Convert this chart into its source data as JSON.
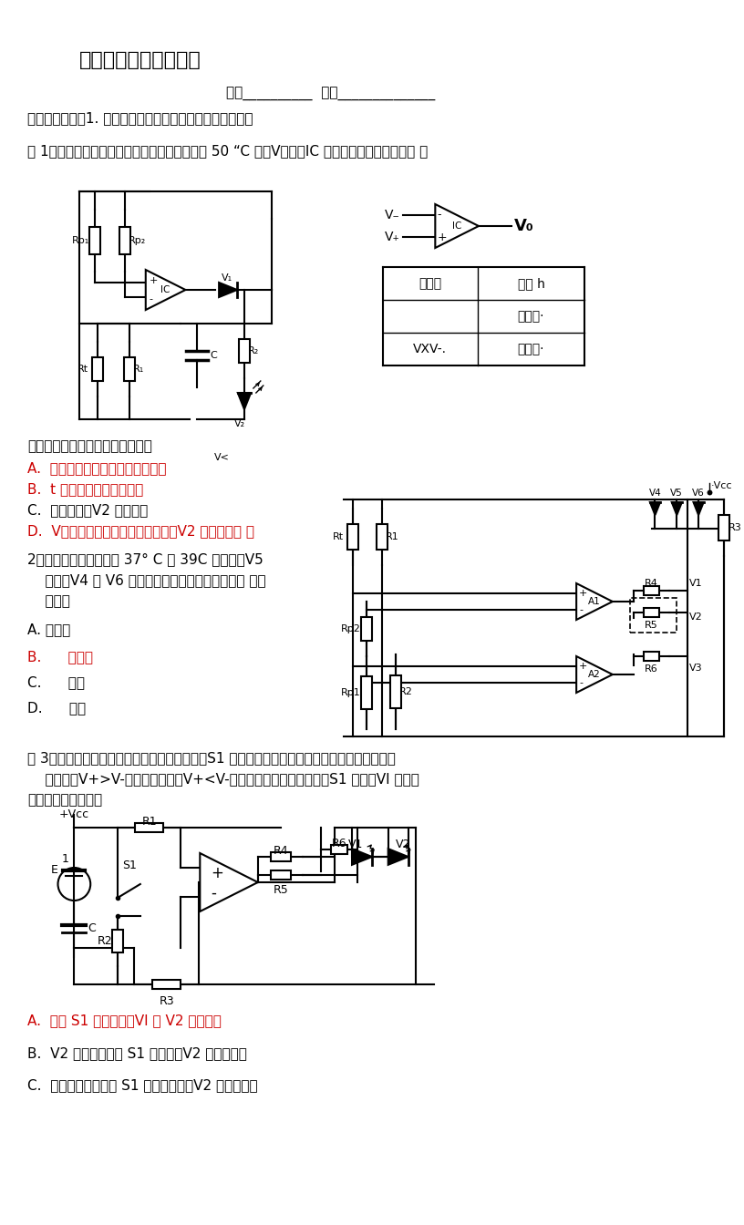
{
  "title": "电压比较器应用（一）",
  "subtitle": "班级__________  姓名______________",
  "objective": "【学习目标】：1. 会分析利用比较器进行的状态显示电路。",
  "ex1_intro": "例 1：如图所示是温度显示电路，当温度上升到 50 “C 时，V，亮。IC 是电压比较器，输入输出 的",
  "logic_text": "逻辑关系见表。以下分析正确的是",
  "ex1_A_text": "A.  要想更高温度时龄亮，可以调大",
  "ex1_A_color": "#cc0000",
  "ex1_B_text": "B.  t 是正温度系数热敏电阻",
  "ex1_B_color": "#cc0000",
  "ex1_C_text": "C.  队短路后，V2 始终不亮",
  "ex1_C_color": "#000000",
  "ex1_D_text": "D.  V。输出从高电平变为低电平后，V2 可延时熄灭 例",
  "ex1_D_color": "#cc0000",
  "ex2_intro": "2：鸡蛋孵化室温度介于 37° C 和 39C 之间时，V5",
  "ex2_line2": "    发光，V4 和 V6 不发光，题图虚线框位置应选用 的逻",
  "ex2_line3": "    辑门是",
  "ex2_A_text": "A. 与非门",
  "ex2_A_color": "#000000",
  "ex2_B_text": "B.      或非门",
  "ex2_B_color": "#cc0000",
  "ex2_C_text": "C.      与门",
  "ex2_C_color": "#000000",
  "ex2_D_text": "D.      或门",
  "ex2_D_color": "#000000",
  "ex3_intro1": "例 3：如图是小明设计的发光二极管控制电路。S1 是按钮开关，按下时接通，松开时断开。比较",
  "ex3_intro2": "    器功能：V+>V-时输出高电平，V+<V-时输出低电平。初始状态，S1 断开、VI 发光。",
  "ex3_sub": "下列分析中正确的是",
  "ex3_A_text": "A.  按下 S1 后不松开，VI 和 V2 交替发光",
  "ex3_A_color": "#cc0000",
  "ex3_B_text": "B.  V2 发光时，按下 S1 后松开，V2 仍保持发光",
  "ex3_B_color": "#000000",
  "ex3_C_text": "C.  初始状态下，按下 S1 后立即松开，V2 一定不发光",
  "ex3_C_color": "#000000",
  "table_h1": "输入。",
  "table_h2": "输出 h",
  "table_r1c2": "高电平·",
  "table_r2c1": "VXV-.",
  "table_r2c2": "低电平·",
  "bg": "#ffffff"
}
